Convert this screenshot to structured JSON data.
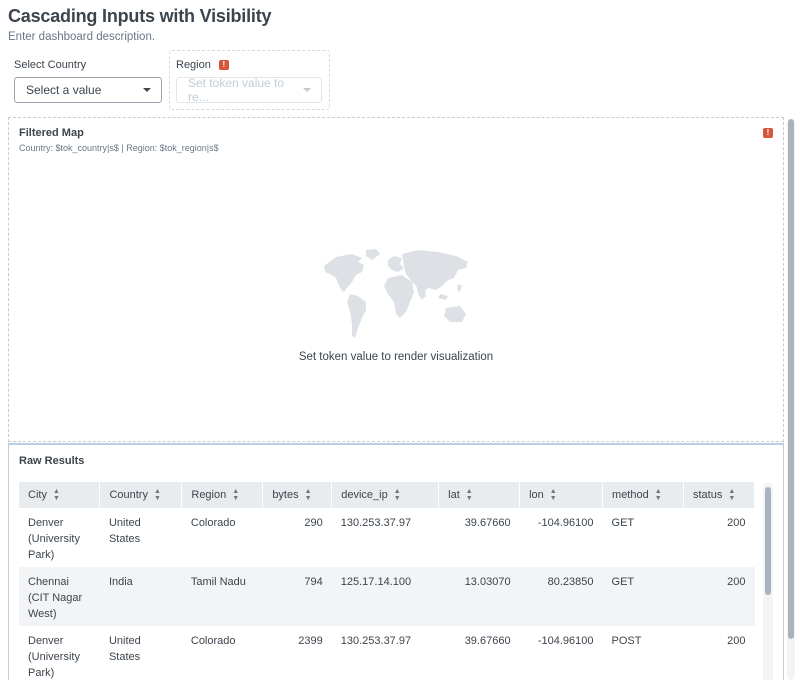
{
  "dashboard": {
    "title": "Cascading Inputs with Visibility",
    "description": "Enter dashboard description."
  },
  "inputs": {
    "country": {
      "label": "Select Country",
      "value": "Select a value"
    },
    "region": {
      "label": "Region",
      "value": "Set token value to re...",
      "error": "!"
    }
  },
  "map_panel": {
    "title": "Filtered Map",
    "subtitle": "Country: $tok_country|s$ | Region: $tok_region|s$",
    "message": "Set token value to render visualization",
    "error": "!",
    "icon": "world-map-icon"
  },
  "raw_panel": {
    "title": "Raw Results",
    "columns": [
      "City",
      "Country",
      "Region",
      "bytes",
      "device_ip",
      "lat",
      "lon",
      "method",
      "status"
    ],
    "rows": [
      {
        "city": [
          "Denver",
          "(University",
          "Park)"
        ],
        "country": [
          "United",
          "States"
        ],
        "region": "Colorado",
        "bytes": "290",
        "device_ip": "130.253.37.97",
        "lat": "39.67660",
        "lon": "-104.96100",
        "method": "GET",
        "status": "200"
      },
      {
        "city": [
          "Chennai",
          "(CIT Nagar",
          "West)"
        ],
        "country": [
          "India"
        ],
        "region": "Tamil Nadu",
        "bytes": "794",
        "device_ip": "125.17.14.100",
        "lat": "13.03070",
        "lon": "80.23850",
        "method": "GET",
        "status": "200"
      },
      {
        "city": [
          "Denver",
          "(University",
          "Park)"
        ],
        "country": [
          "United",
          "States"
        ],
        "region": "Colorado",
        "bytes": "2399",
        "device_ip": "130.253.37.97",
        "lat": "39.67660",
        "lon": "-104.96100",
        "method": "POST",
        "status": "200"
      }
    ]
  },
  "colors": {
    "error": "#d6563c",
    "header_bg": "#e9ecef",
    "row_alt": "#f2f4f5"
  }
}
